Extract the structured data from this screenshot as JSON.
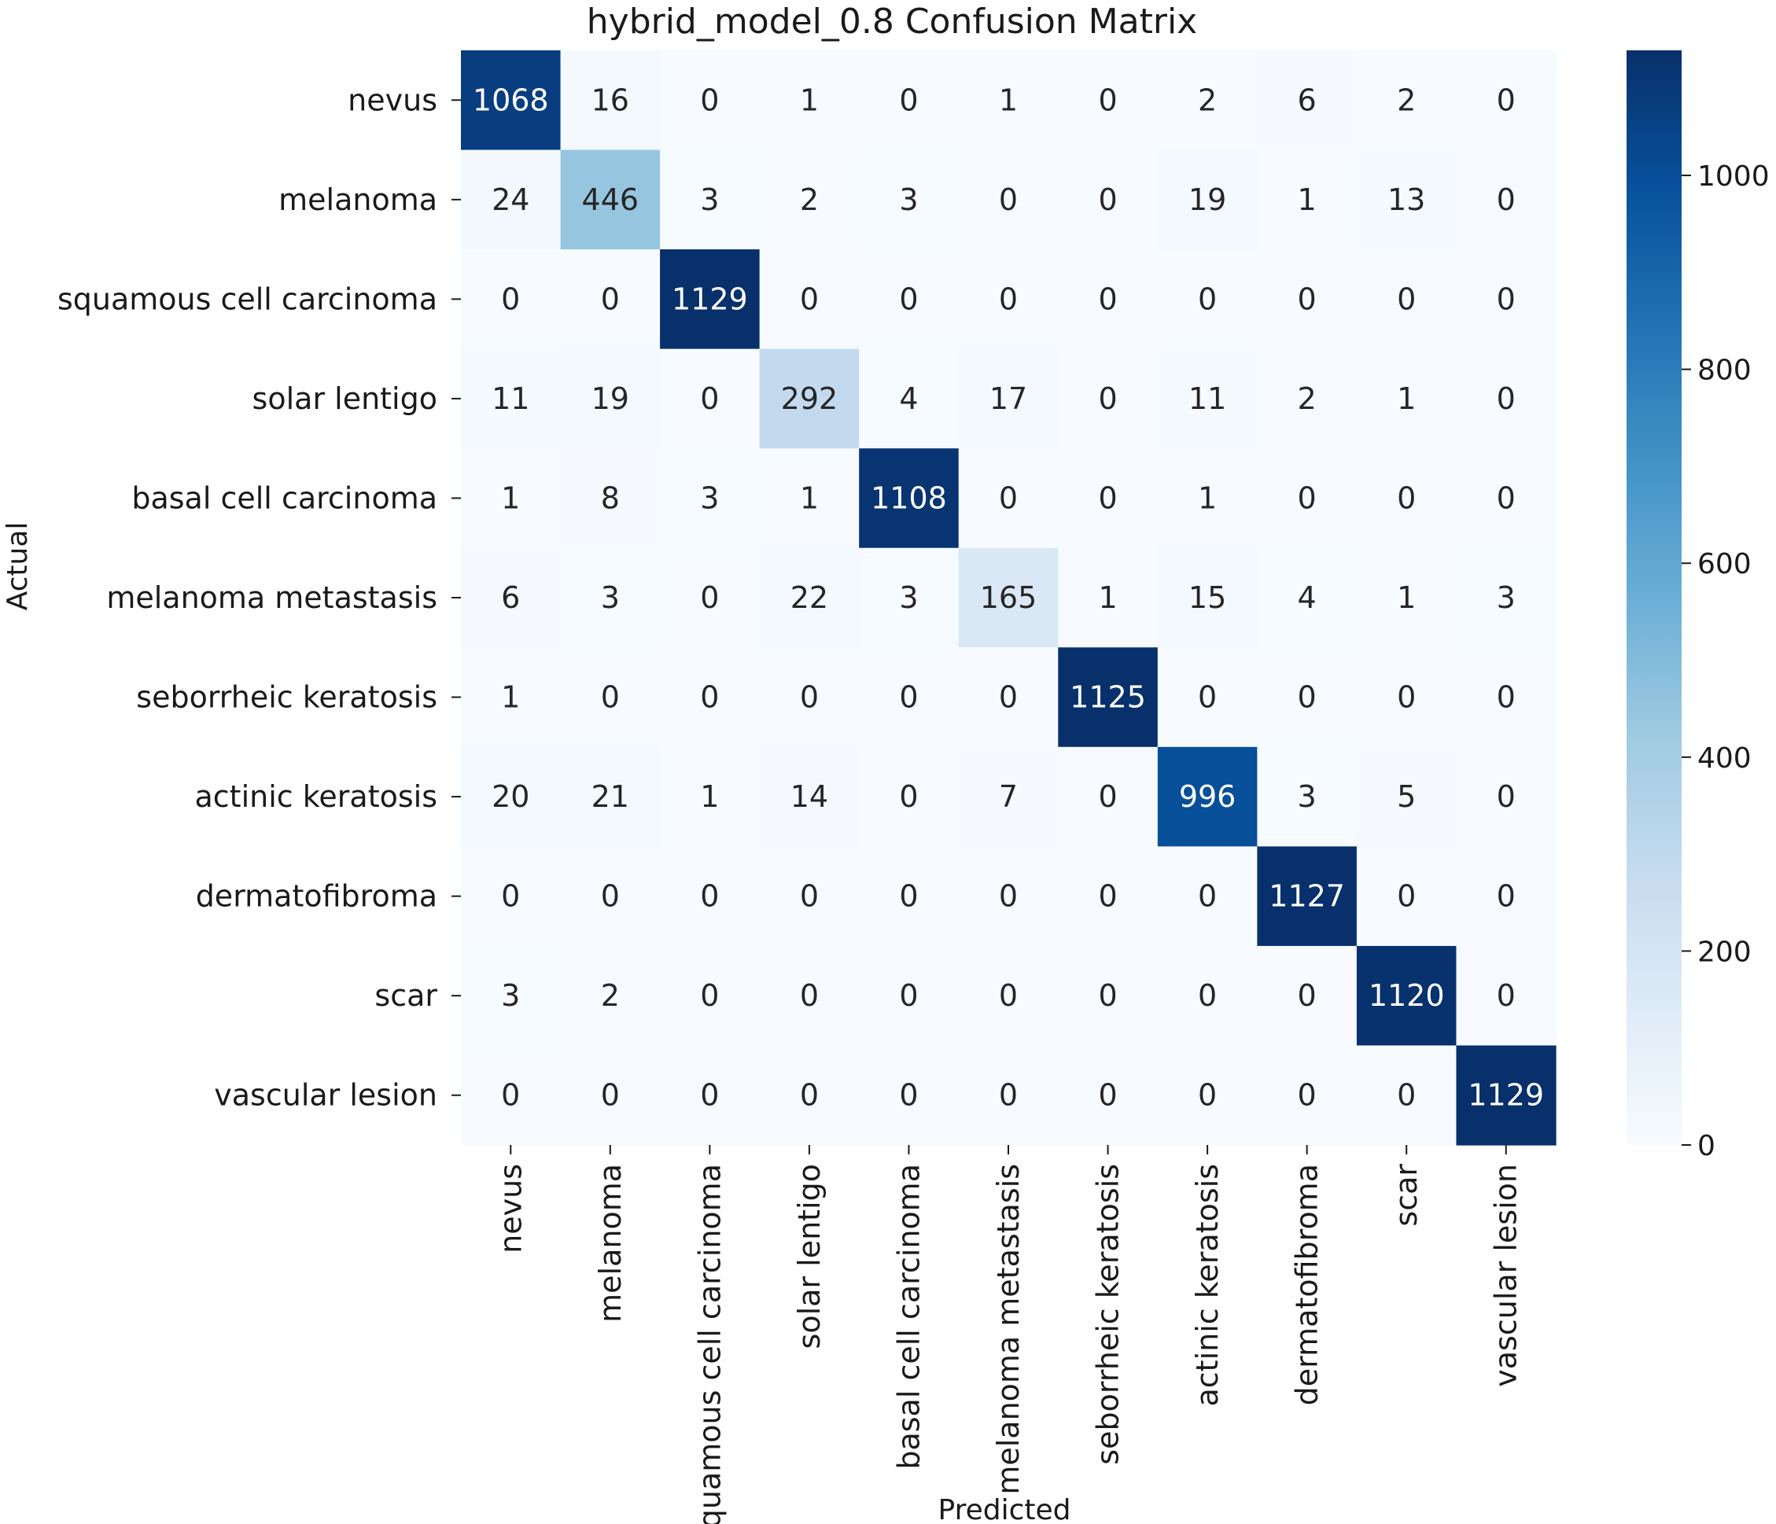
{
  "chart_data": {
    "type": "heatmap",
    "title": "hybrid_model_0.8 Confusion Matrix",
    "xlabel": "Predicted",
    "ylabel": "Actual",
    "row_labels": [
      "nevus",
      "melanoma",
      "squamous cell carcinoma",
      "solar lentigo",
      "basal cell carcinoma",
      "melanoma metastasis",
      "seborrheic keratosis",
      "actinic keratosis",
      "dermatofibroma",
      "scar",
      "vascular lesion"
    ],
    "col_labels": [
      "nevus",
      "melanoma",
      "squamous cell carcinoma",
      "solar lentigo",
      "basal cell carcinoma",
      "melanoma metastasis",
      "seborrheic keratosis",
      "actinic keratosis",
      "dermatofibroma",
      "scar",
      "vascular lesion"
    ],
    "matrix": [
      [
        1068,
        16,
        0,
        1,
        0,
        1,
        0,
        2,
        6,
        2,
        0
      ],
      [
        24,
        446,
        3,
        2,
        3,
        0,
        0,
        19,
        1,
        13,
        0
      ],
      [
        0,
        0,
        1129,
        0,
        0,
        0,
        0,
        0,
        0,
        0,
        0
      ],
      [
        11,
        19,
        0,
        292,
        4,
        17,
        0,
        11,
        2,
        1,
        0
      ],
      [
        1,
        8,
        3,
        1,
        1108,
        0,
        0,
        1,
        0,
        0,
        0
      ],
      [
        6,
        3,
        0,
        22,
        3,
        165,
        1,
        15,
        4,
        1,
        3
      ],
      [
        1,
        0,
        0,
        0,
        0,
        0,
        1125,
        0,
        0,
        0,
        0
      ],
      [
        20,
        21,
        1,
        14,
        0,
        7,
        0,
        996,
        3,
        5,
        0
      ],
      [
        0,
        0,
        0,
        0,
        0,
        0,
        0,
        0,
        1127,
        0,
        0
      ],
      [
        3,
        2,
        0,
        0,
        0,
        0,
        0,
        0,
        0,
        1120,
        0
      ],
      [
        0,
        0,
        0,
        0,
        0,
        0,
        0,
        0,
        0,
        0,
        1129
      ]
    ],
    "colormap": "Blues",
    "vmin": 0,
    "vmax": 1129,
    "colorbar_ticks": [
      0,
      200,
      400,
      600,
      800,
      1000
    ]
  }
}
